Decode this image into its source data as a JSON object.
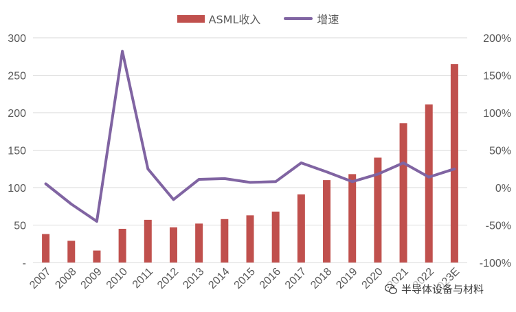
{
  "chart_data": {
    "type": "bar",
    "categories": [
      "2007",
      "2008",
      "2009",
      "2010",
      "2011",
      "2012",
      "2013",
      "2014",
      "2015",
      "2016",
      "2017",
      "2018",
      "2019",
      "2020",
      "2021",
      "2022",
      "2023E"
    ],
    "series": [
      {
        "name": "ASML收入",
        "type": "bar",
        "axis": "left",
        "values": [
          38,
          29,
          16,
          45,
          57,
          47,
          52,
          58,
          63,
          68,
          91,
          110,
          118,
          140,
          186,
          211,
          265
        ]
      },
      {
        "name": "增速",
        "type": "line",
        "axis": "right",
        "values": [
          0.05,
          -0.22,
          -0.45,
          1.82,
          0.25,
          -0.16,
          0.11,
          0.12,
          0.07,
          0.08,
          0.33,
          0.21,
          0.08,
          0.18,
          0.33,
          0.14,
          0.25
        ]
      }
    ],
    "left_axis": {
      "min": 0,
      "max": 300,
      "ticks": [
        "-",
        "50",
        "100",
        "150",
        "200",
        "250",
        "300"
      ]
    },
    "right_axis": {
      "min": -1.0,
      "max": 2.0,
      "ticks": [
        "-100%",
        "-50%",
        "0%",
        "50%",
        "100%",
        "150%",
        "200%"
      ]
    },
    "grid": "horizontal",
    "legend_position": "top",
    "colors": {
      "bar": "#c0504d",
      "line": "#8064a2",
      "grid": "#d9d9d9",
      "text": "#595959"
    }
  },
  "watermark": {
    "text": "半导体设备与材料",
    "icon": "wechat-icon"
  }
}
